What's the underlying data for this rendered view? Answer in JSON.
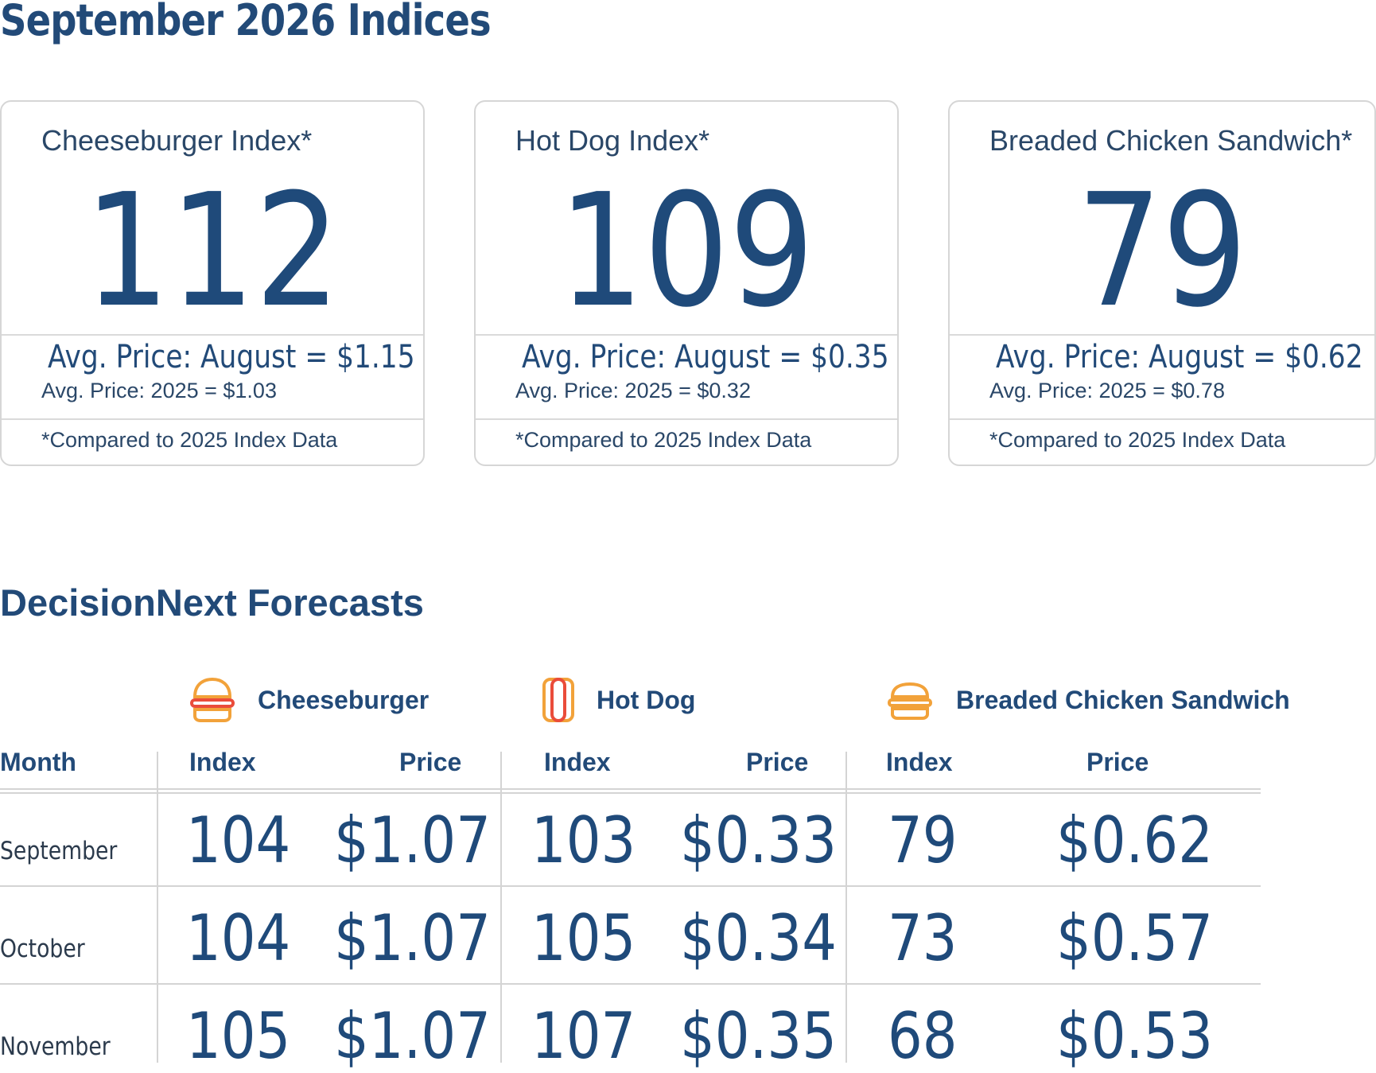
{
  "page": {
    "title": "September 2026 Indices"
  },
  "cards": [
    {
      "title": "Cheeseburger Index*",
      "value": "112",
      "aug": "Avg. Price: August = $1.15",
      "yr": "Avg. Price: 2025 = $1.03",
      "note": "*Compared to 2025 Index Data"
    },
    {
      "title": "Hot Dog Index*",
      "value": "109",
      "aug": "Avg. Price: August = $0.35",
      "yr": "Avg. Price: 2025 = $0.32",
      "note": "*Compared to 2025 Index Data"
    },
    {
      "title": "Breaded Chicken Sandwich*",
      "value": "79",
      "aug": "Avg. Price: August = $0.62",
      "yr": "Avg. Price: 2025 = $0.78",
      "note": "*Compared to 2025 Index Data"
    }
  ],
  "forecasts": {
    "title": "DecisionNext Forecasts",
    "products": [
      {
        "name": "Cheeseburger",
        "icon": "burger-icon"
      },
      {
        "name": "Hot Dog",
        "icon": "hotdog-icon"
      },
      {
        "name": "Breaded Chicken Sandwich",
        "icon": "sandwich-icon"
      }
    ],
    "headers": {
      "month": "Month",
      "index": "Index",
      "price": "Price"
    },
    "rows": [
      {
        "month": "September",
        "c_index": "104",
        "c_price": "$1.07",
        "h_index": "103",
        "h_price": "$0.33",
        "b_index": "79",
        "b_price": "$0.62"
      },
      {
        "month": "October",
        "c_index": "104",
        "c_price": "$1.07",
        "h_index": "105",
        "h_price": "$0.34",
        "b_index": "73",
        "b_price": "$0.57"
      },
      {
        "month": "November",
        "c_index": "105",
        "c_price": "$1.07",
        "h_index": "107",
        "h_price": "$0.35",
        "b_index": "68",
        "b_price": "$0.53"
      }
    ]
  },
  "colors": {
    "primary": "#224a78",
    "border": "#d6d6d6",
    "icon_orange": "#f2a23a",
    "icon_red": "#ea4c3a"
  }
}
